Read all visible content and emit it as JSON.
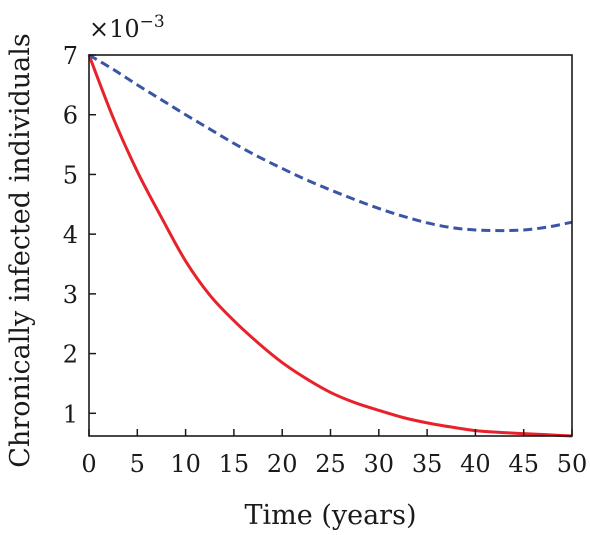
{
  "chart_data": {
    "type": "line",
    "title": "",
    "xlabel": "Time (years)",
    "ylabel": "Chronically infected individuals",
    "y_multiplier_label": "×10",
    "y_multiplier_exponent": "−3",
    "xlim": [
      0,
      50
    ],
    "ylim": [
      0.62,
      7
    ],
    "xticks": [
      "0",
      "5",
      "10",
      "15",
      "20",
      "25",
      "30",
      "35",
      "40",
      "45",
      "50"
    ],
    "yticks": [
      "1",
      "2",
      "3",
      "4",
      "5",
      "6",
      "7"
    ],
    "grid": false,
    "legend": "none",
    "series": [
      {
        "style": "solid",
        "color": "#e8222a",
        "x": [
          0,
          2.5,
          5,
          7.5,
          10,
          12.5,
          15,
          17.5,
          20,
          22.5,
          25,
          27.5,
          30,
          32.5,
          35,
          37.5,
          40,
          42.5,
          45,
          47.5,
          50
        ],
        "y": [
          7.0,
          5.95,
          5.05,
          4.28,
          3.55,
          2.98,
          2.55,
          2.18,
          1.85,
          1.58,
          1.35,
          1.18,
          1.05,
          0.93,
          0.84,
          0.77,
          0.71,
          0.68,
          0.66,
          0.64,
          0.62
        ]
      },
      {
        "style": "dashed",
        "color": "#3a55a4",
        "x": [
          0,
          2.5,
          5,
          7.5,
          10,
          12.5,
          15,
          17.5,
          20,
          22.5,
          25,
          27.5,
          30,
          32.5,
          35,
          37.5,
          40,
          42.5,
          45,
          47.5,
          50
        ],
        "y": [
          7.0,
          6.76,
          6.5,
          6.25,
          6.0,
          5.76,
          5.52,
          5.3,
          5.1,
          4.91,
          4.74,
          4.58,
          4.43,
          4.3,
          4.19,
          4.11,
          4.07,
          4.06,
          4.07,
          4.12,
          4.2
        ]
      }
    ]
  }
}
